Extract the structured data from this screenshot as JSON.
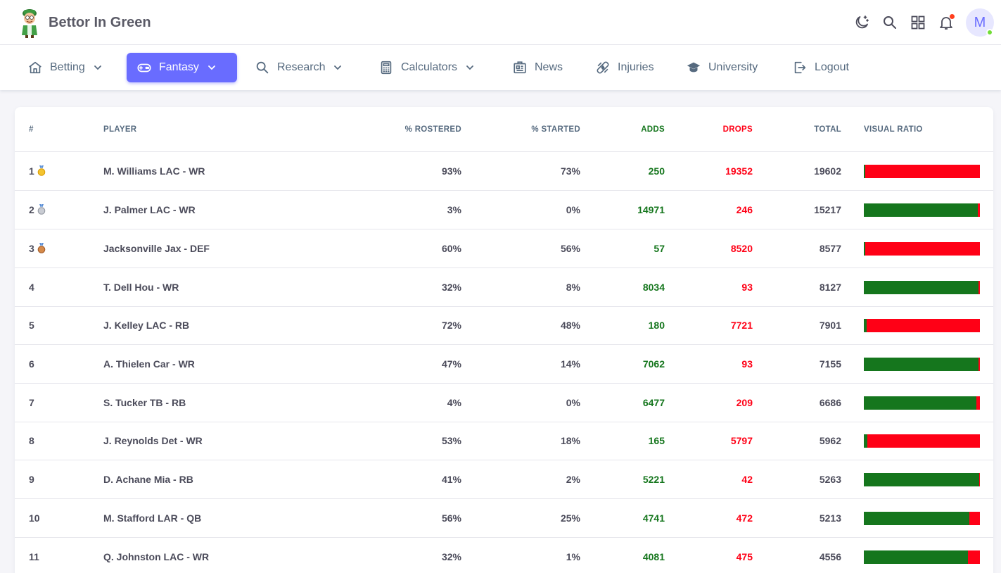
{
  "brand": {
    "name": "Bettor In Green"
  },
  "topbar": {
    "icons": [
      "moon-star-icon",
      "search-icon",
      "grid-apps-icon",
      "bell-icon"
    ],
    "avatar_initial": "M"
  },
  "nav": [
    {
      "label": "Betting",
      "icon": "home-icon",
      "dropdown": true
    },
    {
      "label": "Fantasy",
      "icon": "gamepad-icon",
      "dropdown": true,
      "active": true
    },
    {
      "label": "Research",
      "icon": "search-icon",
      "dropdown": true
    },
    {
      "label": "Calculators",
      "icon": "calculator-icon",
      "dropdown": true
    },
    {
      "label": "News",
      "icon": "news-icon",
      "dropdown": false
    },
    {
      "label": "Injuries",
      "icon": "bandage-icon",
      "dropdown": false
    },
    {
      "label": "University",
      "icon": "graduation-cap-icon",
      "dropdown": false
    },
    {
      "label": "Logout",
      "icon": "logout-icon",
      "dropdown": false
    }
  ],
  "table": {
    "columns": [
      "#",
      "PLAYER",
      "% ROSTERED",
      "% STARTED",
      "ADDS",
      "DROPS",
      "TOTAL",
      "VISUAL RATIO"
    ],
    "rows": [
      {
        "rank": "1",
        "medal": "gold",
        "player": "M. Williams LAC - WR",
        "rostered": "93%",
        "started": "73%",
        "adds": "250",
        "drops": "19352",
        "total": "19602"
      },
      {
        "rank": "2",
        "medal": "silver",
        "player": "J. Palmer LAC - WR",
        "rostered": "3%",
        "started": "0%",
        "adds": "14971",
        "drops": "246",
        "total": "15217"
      },
      {
        "rank": "3",
        "medal": "bronze",
        "player": "Jacksonville Jax - DEF",
        "rostered": "60%",
        "started": "56%",
        "adds": "57",
        "drops": "8520",
        "total": "8577"
      },
      {
        "rank": "4",
        "medal": "",
        "player": "T. Dell Hou - WR",
        "rostered": "32%",
        "started": "8%",
        "adds": "8034",
        "drops": "93",
        "total": "8127"
      },
      {
        "rank": "5",
        "medal": "",
        "player": "J. Kelley LAC - RB",
        "rostered": "72%",
        "started": "48%",
        "adds": "180",
        "drops": "7721",
        "total": "7901"
      },
      {
        "rank": "6",
        "medal": "",
        "player": "A. Thielen Car - WR",
        "rostered": "47%",
        "started": "14%",
        "adds": "7062",
        "drops": "93",
        "total": "7155"
      },
      {
        "rank": "7",
        "medal": "",
        "player": "S. Tucker TB - RB",
        "rostered": "4%",
        "started": "0%",
        "adds": "6477",
        "drops": "209",
        "total": "6686"
      },
      {
        "rank": "8",
        "medal": "",
        "player": "J. Reynolds Det - WR",
        "rostered": "53%",
        "started": "18%",
        "adds": "165",
        "drops": "5797",
        "total": "5962"
      },
      {
        "rank": "9",
        "medal": "",
        "player": "D. Achane Mia - RB",
        "rostered": "41%",
        "started": "2%",
        "adds": "5221",
        "drops": "42",
        "total": "5263"
      },
      {
        "rank": "10",
        "medal": "",
        "player": "M. Stafford LAR - QB",
        "rostered": "56%",
        "started": "25%",
        "adds": "4741",
        "drops": "472",
        "total": "5213"
      },
      {
        "rank": "11",
        "medal": "",
        "player": "Q. Johnston LAC - WR",
        "rostered": "32%",
        "started": "1%",
        "adds": "4081",
        "drops": "475",
        "total": "4556"
      }
    ]
  },
  "colors": {
    "accent": "#696cff",
    "adds": "#15761d",
    "drops": "#ff0016"
  }
}
